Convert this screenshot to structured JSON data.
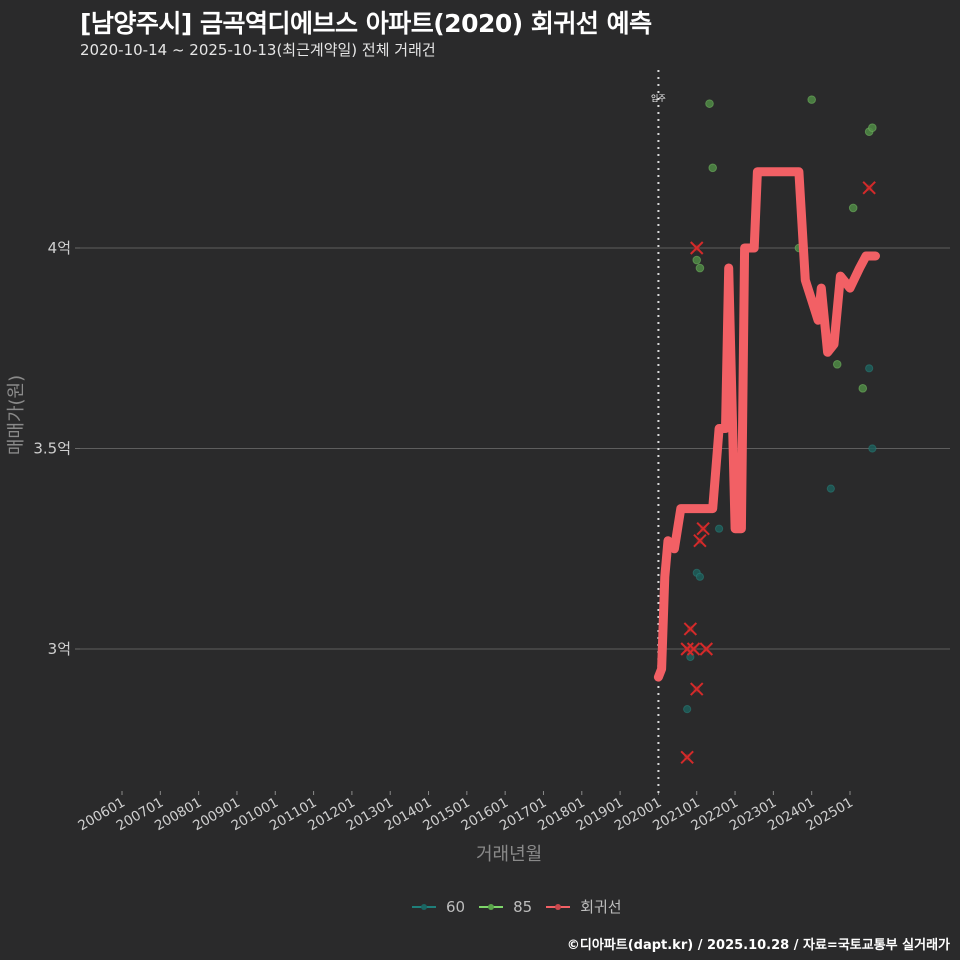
{
  "header": {
    "title": "[남양주시] 금곡역디에브스 아파트(2020) 회귀선 예측",
    "subtitle": "2020-10-14 ~ 2025-10-13(최근계약일) 전체 거래건"
  },
  "axes": {
    "xlabel": "거래년월",
    "ylabel": "매매가(원)"
  },
  "legend": {
    "items": [
      {
        "label": "60",
        "color": "#1f7f7a"
      },
      {
        "label": "85",
        "color": "#7ed66a"
      },
      {
        "label": "회귀선",
        "color": "#f26065"
      }
    ]
  },
  "annotation": {
    "label": "입주",
    "x": "202001"
  },
  "footer": {
    "credit": "©디아파트(dapt.kr) / 2025.10.28 / 자료=국토교통부 실거래가"
  },
  "colors": {
    "background": "#2a2a2b",
    "grid": "#5e5e5e",
    "regression": "#f26065",
    "series_60": "#1f7f7a",
    "series_85": "#7ed66a",
    "x_marker": "#d42a2a"
  },
  "chart_data": {
    "type": "scatter",
    "title": "[남양주시] 금곡역디에브스 아파트(2020) 회귀선 예측",
    "subtitle": "2020-10-14 ~ 2025-10-13(최근계약일) 전체 거래건",
    "xlabel": "거래년월",
    "ylabel": "매매가(원)",
    "x_ticks": [
      "200601",
      "200701",
      "200801",
      "200901",
      "201001",
      "201101",
      "201201",
      "201301",
      "201401",
      "201501",
      "201601",
      "201701",
      "201801",
      "201901",
      "202001",
      "202101",
      "202201",
      "202301",
      "202401",
      "202501"
    ],
    "y_ticks": [
      {
        "value": 3.0,
        "label": "3억"
      },
      {
        "value": 3.5,
        "label": "3.5억"
      },
      {
        "value": 4.0,
        "label": "4억"
      }
    ],
    "ylim": [
      2.64,
      4.45
    ],
    "grid": "horizontal",
    "legend_position": "bottom",
    "vline": {
      "x": "202001",
      "label": "입주",
      "style": "dotted"
    },
    "series": [
      {
        "name": "60",
        "unit": "억",
        "points": [
          {
            "x": "2020-10",
            "y": 2.85
          },
          {
            "x": "2020-11",
            "y": 2.98
          },
          {
            "x": "2021-01",
            "y": 3.19
          },
          {
            "x": "2021-02",
            "y": 3.18
          },
          {
            "x": "2021-08",
            "y": 3.3
          },
          {
            "x": "2024-07",
            "y": 3.4
          },
          {
            "x": "2025-07",
            "y": 3.7
          },
          {
            "x": "2025-08",
            "y": 3.5
          }
        ]
      },
      {
        "name": "85",
        "unit": "억",
        "points": [
          {
            "x": "2021-01",
            "y": 3.97
          },
          {
            "x": "2021-02",
            "y": 3.95
          },
          {
            "x": "2021-05",
            "y": 4.36
          },
          {
            "x": "2021-06",
            "y": 4.2
          },
          {
            "x": "2023-09",
            "y": 4.0
          },
          {
            "x": "2024-01",
            "y": 4.37
          },
          {
            "x": "2024-09",
            "y": 3.71
          },
          {
            "x": "2025-02",
            "y": 4.1
          },
          {
            "x": "2025-05",
            "y": 3.65
          },
          {
            "x": "2025-07",
            "y": 4.29
          },
          {
            "x": "2025-08",
            "y": 4.3
          }
        ]
      },
      {
        "name": "회귀선",
        "unit": "억",
        "markers_x": [
          {
            "x": "2020-10",
            "y": 2.73
          },
          {
            "x": "2020-10",
            "y": 3.0
          },
          {
            "x": "2020-11",
            "y": 3.05
          },
          {
            "x": "2020-12",
            "y": 3.0
          },
          {
            "x": "2021-01",
            "y": 2.9
          },
          {
            "x": "2021-01",
            "y": 4.0
          },
          {
            "x": "2021-02",
            "y": 3.27
          },
          {
            "x": "2021-03",
            "y": 3.3
          },
          {
            "x": "2021-04",
            "y": 3.0
          },
          {
            "x": "2025-07",
            "y": 4.15
          }
        ],
        "line": [
          {
            "x": "2020-01",
            "y": 2.93
          },
          {
            "x": "2020-02",
            "y": 2.95
          },
          {
            "x": "2020-03",
            "y": 3.18
          },
          {
            "x": "2020-04",
            "y": 3.27
          },
          {
            "x": "2020-06",
            "y": 3.25
          },
          {
            "x": "2020-08",
            "y": 3.35
          },
          {
            "x": "2021-06",
            "y": 3.35
          },
          {
            "x": "2021-08",
            "y": 3.55
          },
          {
            "x": "2021-10",
            "y": 3.55
          },
          {
            "x": "2021-11",
            "y": 3.95
          },
          {
            "x": "2022-01",
            "y": 3.3
          },
          {
            "x": "2022-03",
            "y": 3.3
          },
          {
            "x": "2022-04",
            "y": 4.0
          },
          {
            "x": "2022-07",
            "y": 4.0
          },
          {
            "x": "2022-08",
            "y": 4.19
          },
          {
            "x": "2023-09",
            "y": 4.19
          },
          {
            "x": "2023-11",
            "y": 3.92
          },
          {
            "x": "2024-01",
            "y": 3.87
          },
          {
            "x": "2024-03",
            "y": 3.82
          },
          {
            "x": "2024-04",
            "y": 3.9
          },
          {
            "x": "2024-06",
            "y": 3.74
          },
          {
            "x": "2024-08",
            "y": 3.76
          },
          {
            "x": "2024-10",
            "y": 3.93
          },
          {
            "x": "2025-01",
            "y": 3.9
          },
          {
            "x": "2025-04",
            "y": 3.95
          },
          {
            "x": "2025-06",
            "y": 3.98
          },
          {
            "x": "2025-09",
            "y": 3.98
          }
        ]
      }
    ]
  }
}
